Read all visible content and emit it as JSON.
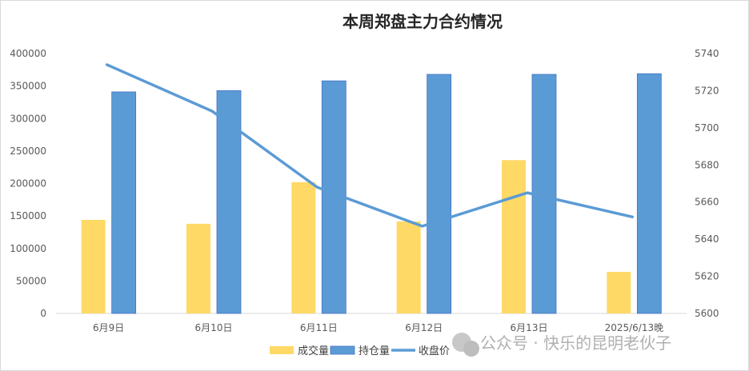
{
  "chart_data": {
    "type": "bar+line",
    "title": "本周郑盘主力合约情况",
    "categories": [
      "6月9日",
      "6月10日",
      "6月11日",
      "6月12日",
      "6月13日",
      "2025/6/13晚"
    ],
    "series": [
      {
        "name": "成交量",
        "type": "bar",
        "axis": "left",
        "color": "#FFD966",
        "values": [
          144000,
          138000,
          202000,
          141500,
          236000,
          64000
        ]
      },
      {
        "name": "持仓量",
        "type": "bar",
        "axis": "left",
        "color": "#5B9BD5",
        "values": [
          341000,
          343000,
          358000,
          368000,
          368000,
          369000
        ]
      },
      {
        "name": "收盘价",
        "type": "line",
        "axis": "right",
        "color": "#5B9BD5",
        "values": [
          5734,
          5709,
          5668,
          5647,
          5665,
          5652
        ]
      }
    ],
    "y_left": {
      "range": [
        0,
        400000
      ],
      "ticks": [
        0,
        50000,
        100000,
        150000,
        200000,
        250000,
        300000,
        350000,
        400000
      ]
    },
    "y_right": {
      "range": [
        5600,
        5740
      ],
      "ticks": [
        5600,
        5620,
        5640,
        5660,
        5680,
        5700,
        5720,
        5740
      ]
    },
    "grid": false,
    "legend": "bottom"
  },
  "watermark": "公众号 · 快乐的昆明老伙子"
}
